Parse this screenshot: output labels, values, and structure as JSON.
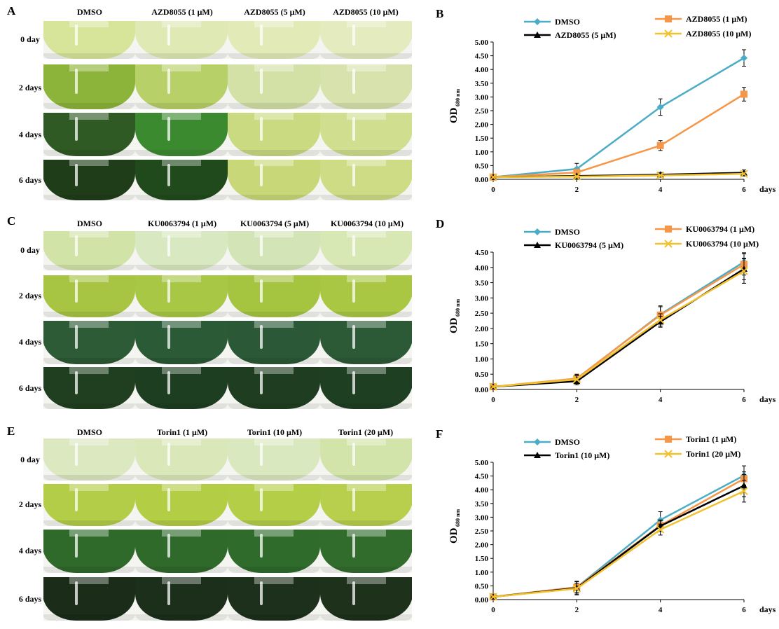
{
  "photo_panels": [
    {
      "letter": "A",
      "columns": [
        "DMSO",
        "AZD8055 (1 μM)",
        "AZD8055 (5 μM)",
        "AZD8055 (10 μM)"
      ],
      "rows": [
        {
          "label": "0 day",
          "colors": [
            "#d6e59a",
            "#dfe9b4",
            "#e2eab8",
            "#e3ebbf"
          ]
        },
        {
          "label": "2 days",
          "colors": [
            "#8db43a",
            "#b8d068",
            "#d3e0a6",
            "#d7e2ad"
          ]
        },
        {
          "label": "4 days",
          "colors": [
            "#2f5a23",
            "#3c8a30",
            "#c9da80",
            "#d0df8f"
          ]
        },
        {
          "label": "6 days",
          "colors": [
            "#1f3d18",
            "#214a1c",
            "#c8d777",
            "#cedc85"
          ]
        }
      ]
    },
    {
      "letter": "C",
      "columns": [
        "DMSO",
        "KU0063794 (1 μM)",
        "KU0063794 (5 μM)",
        "KU0063794 (10 μM)"
      ],
      "rows": [
        {
          "label": "0 day",
          "colors": [
            "#d2e3a8",
            "#d8e8c0",
            "#d3e5b6",
            "#d7e8b4"
          ]
        },
        {
          "label": "2 days",
          "colors": [
            "#a7c542",
            "#a8c744",
            "#a5c43f",
            "#a9c743"
          ]
        },
        {
          "label": "4 days",
          "colors": [
            "#2d5b35",
            "#2a5a36",
            "#2b5937",
            "#2c5a37"
          ]
        },
        {
          "label": "6 days",
          "colors": [
            "#203f20",
            "#1e3e21",
            "#1f3e21",
            "#1f3f22"
          ]
        }
      ]
    },
    {
      "letter": "E",
      "columns": [
        "DMSO",
        "Torin1 (1 μM)",
        "Torin1 (10 μM)",
        "Torin1 (20 μM)"
      ],
      "rows": [
        {
          "label": "0 day",
          "colors": [
            "#dbe8c0",
            "#dae7b9",
            "#dae8bf",
            "#d2e4a9"
          ]
        },
        {
          "label": "2 days",
          "colors": [
            "#b4cd48",
            "#b3cd45",
            "#b4ce47",
            "#b7cf4c"
          ]
        },
        {
          "label": "4 days",
          "colors": [
            "#2f6a2a",
            "#2f6a2b",
            "#2f6b2b",
            "#316c2c"
          ]
        },
        {
          "label": "6 days",
          "colors": [
            "#1b2c19",
            "#1b2f1b",
            "#1c301b",
            "#1d311b"
          ]
        }
      ]
    }
  ],
  "chart_data": [
    {
      "letter": "B",
      "type": "line",
      "ylabel": "OD",
      "ylabel_sub": "680 nm",
      "xlabel": "days",
      "x": [
        0,
        2,
        4,
        6
      ],
      "ylim": [
        0,
        5
      ],
      "yticks": [
        "0.00",
        "0.50",
        "1.00",
        "1.50",
        "2.00",
        "2.50",
        "3.00",
        "3.50",
        "4.00",
        "4.50",
        "5.00"
      ],
      "series": [
        {
          "name": "DMSO",
          "color": "#4bacc6",
          "marker": "diamond",
          "values": [
            0.08,
            0.38,
            2.63,
            4.42
          ],
          "errors": [
            0.05,
            0.2,
            0.3,
            0.3
          ]
        },
        {
          "name": "AZD8055 (1 μM)",
          "color": "#f79646",
          "marker": "square",
          "values": [
            0.08,
            0.25,
            1.23,
            3.1
          ],
          "errors": [
            0.04,
            0.1,
            0.18,
            0.25
          ]
        },
        {
          "name": "AZD8055 (5 μM)",
          "color": "#000000",
          "marker": "triangle",
          "values": [
            0.08,
            0.12,
            0.17,
            0.24
          ],
          "errors": [
            0.04,
            0.06,
            0.08,
            0.1
          ]
        },
        {
          "name": "AZD8055 (10 μM)",
          "color": "#f2c12e",
          "marker": "x",
          "values": [
            0.08,
            0.1,
            0.14,
            0.2
          ],
          "errors": [
            0.03,
            0.05,
            0.06,
            0.08
          ]
        }
      ]
    },
    {
      "letter": "D",
      "type": "line",
      "ylabel": "OD",
      "ylabel_sub": "680 nm",
      "xlabel": "days",
      "x": [
        0,
        2,
        4,
        6
      ],
      "ylim": [
        0,
        4.5
      ],
      "yticks": [
        "0.00",
        "0.50",
        "1.00",
        "1.50",
        "2.00",
        "2.50",
        "3.00",
        "3.50",
        "4.00",
        "4.50"
      ],
      "series": [
        {
          "name": "DMSO",
          "color": "#4bacc6",
          "marker": "diamond",
          "values": [
            0.09,
            0.35,
            2.46,
            4.18
          ],
          "errors": [
            0.04,
            0.15,
            0.25,
            0.3
          ]
        },
        {
          "name": "KU0063794 (1 μM)",
          "color": "#f79646",
          "marker": "square",
          "values": [
            0.09,
            0.36,
            2.44,
            4.1
          ],
          "errors": [
            0.04,
            0.12,
            0.3,
            0.35
          ]
        },
        {
          "name": "KU0063794 (5 μM)",
          "color": "#000000",
          "marker": "triangle",
          "values": [
            0.09,
            0.27,
            2.22,
            3.95
          ],
          "errors": [
            0.04,
            0.12,
            0.18,
            0.35
          ]
        },
        {
          "name": "KU0063794 (10 μM)",
          "color": "#f2c12e",
          "marker": "x",
          "values": [
            0.09,
            0.33,
            2.28,
            3.88
          ],
          "errors": [
            0.04,
            0.12,
            0.2,
            0.4
          ]
        }
      ]
    },
    {
      "letter": "F",
      "type": "line",
      "ylabel": "OD",
      "ylabel_sub": "680 nm",
      "xlabel": "days",
      "x": [
        0,
        2,
        4,
        6
      ],
      "ylim": [
        0,
        5
      ],
      "yticks": [
        "0.00",
        "0.50",
        "1.00",
        "1.50",
        "2.00",
        "2.50",
        "3.00",
        "3.50",
        "4.00",
        "4.50",
        "5.00"
      ],
      "series": [
        {
          "name": "DMSO",
          "color": "#4bacc6",
          "marker": "diamond",
          "values": [
            0.1,
            0.45,
            2.9,
            4.52
          ],
          "errors": [
            0.05,
            0.2,
            0.3,
            0.35
          ]
        },
        {
          "name": "Torin1 (1 μM)",
          "color": "#f79646",
          "marker": "square",
          "values": [
            0.1,
            0.45,
            2.7,
            4.4
          ],
          "errors": [
            0.05,
            0.2,
            0.2,
            0.25
          ]
        },
        {
          "name": "Torin1  (10 μM)",
          "color": "#000000",
          "marker": "triangle",
          "values": [
            0.1,
            0.42,
            2.68,
            4.15
          ],
          "errors": [
            0.05,
            0.25,
            0.2,
            0.4
          ]
        },
        {
          "name": "Torin1 (20 μM)",
          "color": "#f2c12e",
          "marker": "x",
          "values": [
            0.1,
            0.4,
            2.55,
            3.95
          ],
          "errors": [
            0.05,
            0.2,
            0.2,
            0.4
          ]
        }
      ]
    }
  ]
}
